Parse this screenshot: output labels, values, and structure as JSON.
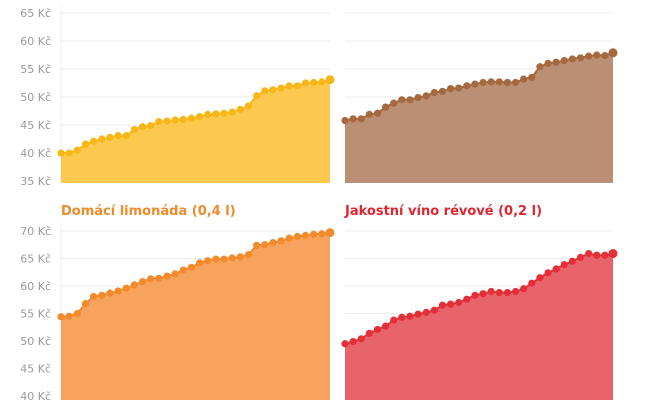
{
  "chart_data": [
    {
      "type": "area",
      "title": "",
      "ylim": [
        35,
        65
      ],
      "yticks": [
        "35 Kč",
        "40 Kč",
        "45 Kč",
        "50 Kč",
        "55 Kč",
        "60 Kč",
        "65 Kč"
      ],
      "show_y_labels": true,
      "grid": true,
      "colors": {
        "line": "#f8b719",
        "fill": "#fcc94e"
      },
      "values": [
        40.0,
        40.0,
        40.5,
        41.6,
        42.1,
        42.5,
        42.8,
        43.1,
        43.1,
        44.2,
        44.7,
        44.9,
        45.6,
        45.7,
        45.9,
        46.0,
        46.2,
        46.5,
        46.9,
        47.0,
        47.1,
        47.3,
        47.8,
        48.4,
        50.2,
        51.1,
        51.3,
        51.6,
        52.0,
        52.0,
        52.5,
        52.6,
        52.7,
        53.1
      ]
    },
    {
      "type": "area",
      "title": "",
      "ylim": [
        35,
        65
      ],
      "show_y_labels": false,
      "grid": true,
      "colors": {
        "line": "#a5683f",
        "fill": "#bb8f73"
      },
      "values": [
        45.8,
        46.1,
        46.1,
        46.9,
        47.1,
        48.2,
        48.9,
        49.5,
        49.5,
        49.9,
        50.2,
        50.8,
        51.0,
        51.5,
        51.6,
        52.0,
        52.3,
        52.6,
        52.7,
        52.7,
        52.6,
        52.6,
        53.2,
        53.5,
        55.4,
        56.0,
        56.2,
        56.5,
        56.8,
        57.0,
        57.3,
        57.5,
        57.4,
        57.9
      ]
    },
    {
      "type": "area",
      "title": "Domácí limonáda (0,4 l)",
      "title_color": "#f08a2a",
      "ylim": [
        40,
        70
      ],
      "yticks": [
        "40 Kč",
        "45 Kč",
        "50 Kč",
        "55 Kč",
        "60 Kč",
        "65 Kč",
        "70 Kč"
      ],
      "show_y_labels": true,
      "grid": true,
      "colors": {
        "line": "#f38a2c",
        "fill": "#f7a35e"
      },
      "values": [
        54.4,
        54.5,
        55.0,
        56.8,
        58.1,
        58.3,
        58.7,
        59.1,
        59.6,
        60.2,
        60.8,
        61.3,
        61.4,
        61.8,
        62.2,
        62.9,
        63.4,
        64.2,
        64.6,
        64.9,
        64.9,
        65.1,
        65.3,
        65.7,
        67.4,
        67.5,
        67.9,
        68.2,
        68.7,
        69.0,
        69.2,
        69.4,
        69.5,
        69.7
      ]
    },
    {
      "type": "area",
      "title": "Jakostní víno révové (0,2 l)",
      "title_color": "#e0262e",
      "ylim": [
        40,
        70
      ],
      "show_y_labels": false,
      "grid": true,
      "colors": {
        "line": "#e33038",
        "fill": "#e8636a"
      },
      "values": [
        49.5,
        49.9,
        50.4,
        51.4,
        52.1,
        52.7,
        53.8,
        54.3,
        54.5,
        54.9,
        55.2,
        55.6,
        56.5,
        56.7,
        57.0,
        57.6,
        58.3,
        58.6,
        59.0,
        58.8,
        58.8,
        59.0,
        59.5,
        60.5,
        61.5,
        62.4,
        63.1,
        63.9,
        64.5,
        65.2,
        65.9,
        65.6,
        65.6,
        65.9
      ]
    }
  ]
}
